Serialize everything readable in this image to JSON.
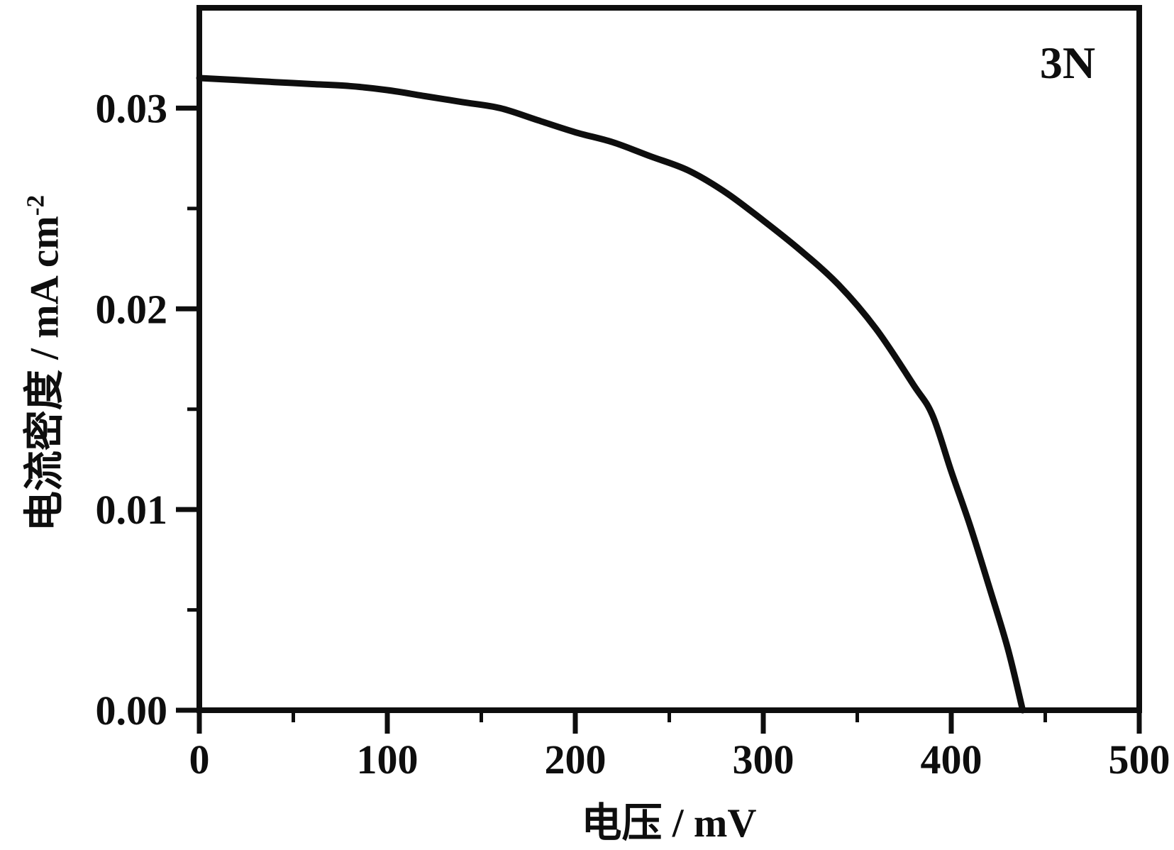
{
  "figure": {
    "background": "#ffffff",
    "ink": "#0e0e0e"
  },
  "chart_data": {
    "type": "line",
    "title": "",
    "annotation": "3N",
    "xlabel": "电压 / mV",
    "ylabel": "电流密度 / mA cm⁻²",
    "ylabel_main": "电流密度 / mA cm",
    "ylabel_sup": "-2",
    "xlim": [
      0,
      500
    ],
    "ylim": [
      0,
      0.035
    ],
    "x_major_ticks": [
      0,
      100,
      200,
      300,
      400,
      500
    ],
    "x_tick_labels": [
      "0",
      "100",
      "200",
      "300",
      "400",
      "500"
    ],
    "x_minor_ticks": [
      50,
      150,
      250,
      350,
      450
    ],
    "y_major_ticks": [
      0,
      0.01,
      0.02,
      0.03
    ],
    "y_tick_labels": [
      "0.00",
      "0.01",
      "0.02",
      "0.03"
    ],
    "y_minor_ticks": [
      0.005,
      0.015,
      0.025
    ],
    "grid": false,
    "legend_position": "none",
    "frame": "full-box",
    "tick_direction": "out",
    "series": [
      {
        "name": "3N",
        "color": "#0e0e0e",
        "x": [
          0,
          20,
          40,
          60,
          80,
          100,
          120,
          140,
          160,
          180,
          200,
          220,
          240,
          260,
          280,
          300,
          320,
          340,
          360,
          380,
          390,
          400,
          410,
          420,
          430,
          438
        ],
        "y": [
          0.0315,
          0.0314,
          0.0313,
          0.0312,
          0.0311,
          0.0309,
          0.0306,
          0.0303,
          0.03,
          0.0294,
          0.0288,
          0.0283,
          0.0276,
          0.0269,
          0.0258,
          0.0244,
          0.0229,
          0.0212,
          0.019,
          0.0162,
          0.0147,
          0.0119,
          0.0092,
          0.0062,
          0.0031,
          0.0
        ]
      }
    ]
  }
}
